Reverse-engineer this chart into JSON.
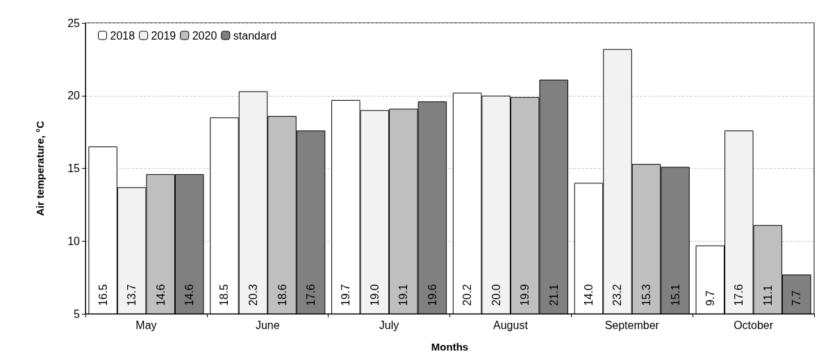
{
  "chart_data": {
    "type": "bar",
    "xlabel": "Months",
    "ylabel": "Air temperature, °C",
    "categories": [
      "May",
      "June",
      "July",
      "August",
      "September",
      "October"
    ],
    "series": [
      {
        "name": "2018",
        "color": "#ffffff",
        "values": [
          16.5,
          18.5,
          19.7,
          20.2,
          14.0,
          9.7
        ],
        "value_labels": [
          "16.5",
          "18.5",
          "19.7",
          "20.2",
          "14.0",
          "9.7"
        ]
      },
      {
        "name": "2019",
        "color": "#f2f2f2",
        "values": [
          13.7,
          20.3,
          19.0,
          20.0,
          23.2,
          17.6
        ],
        "value_labels": [
          "13.7",
          "20.3",
          "19.0",
          "20.0",
          "23.2",
          "17.6"
        ]
      },
      {
        "name": "2020",
        "color": "#bfbfbf",
        "values": [
          14.6,
          18.6,
          19.1,
          19.9,
          15.3,
          11.1
        ],
        "value_labels": [
          "14.6",
          "18.6",
          "19.1",
          "19.9",
          "15.3",
          "11.1"
        ]
      },
      {
        "name": "standard",
        "color": "#808080",
        "values": [
          14.6,
          17.6,
          19.6,
          21.1,
          15.1,
          7.7
        ],
        "value_labels": [
          "14.6",
          "17.6",
          "19.6",
          "21.1",
          "15.1",
          "7.7"
        ]
      }
    ],
    "ylim": [
      5,
      25
    ],
    "yticks": [
      5,
      10,
      15,
      20,
      25
    ],
    "grid": "y",
    "legend": "top left"
  }
}
